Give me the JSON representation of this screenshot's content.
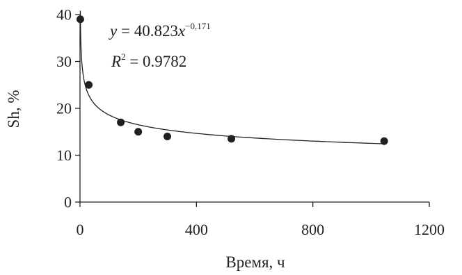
{
  "chart_data": {
    "type": "scatter",
    "xlabel": "Время, ч",
    "ylabel": "Sh, %",
    "xlim": [
      0,
      1200
    ],
    "ylim": [
      0,
      40
    ],
    "x_ticks": [
      0,
      400,
      800,
      1200
    ],
    "y_ticks": [
      0,
      10,
      20,
      30,
      40
    ],
    "grid": false,
    "series": [
      {
        "points": [
          {
            "x": 1,
            "y": 39
          },
          {
            "x": 30,
            "y": 25
          },
          {
            "x": 140,
            "y": 17
          },
          {
            "x": 200,
            "y": 15
          },
          {
            "x": 300,
            "y": 14
          },
          {
            "x": 520,
            "y": 13.5
          },
          {
            "x": 1045,
            "y": 13
          }
        ]
      }
    ],
    "trendline": {
      "type": "power",
      "a": 40.823,
      "b": -0.171,
      "equation": {
        "lhs": "y",
        "eq1": " = 40.823",
        "var": "x",
        "exp": "−0,171"
      },
      "r2": {
        "lhs": "R",
        "sup": "2",
        "rhs": " = 0.9782"
      }
    }
  }
}
